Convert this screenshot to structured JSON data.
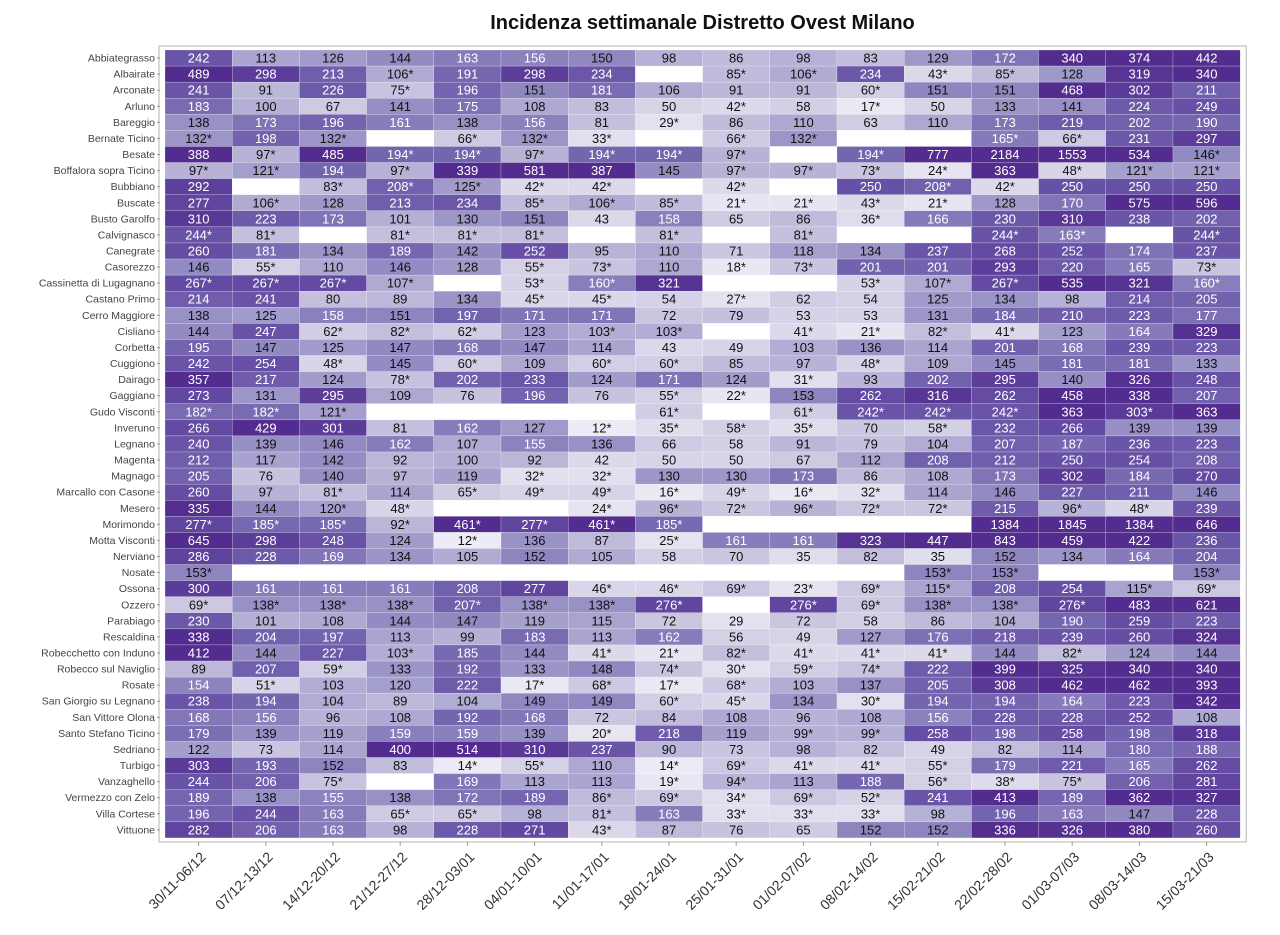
{
  "chart_data": {
    "type": "heatmap",
    "title": "Incidenza settimanale Distretto Ovest Milano",
    "xlabel": "",
    "ylabel": "",
    "columns": [
      "30/11-06/12",
      "07/12-13/12",
      "14/12-20/12",
      "21/12-27/12",
      "28/12-03/01",
      "04/01-10/01",
      "11/01-17/01",
      "18/01-24/01",
      "25/01-31/01",
      "01/02-07/02",
      "08/02-14/02",
      "15/02-21/02",
      "22/02-28/02",
      "01/03-07/03",
      "08/03-14/03",
      "15/03-21/03"
    ],
    "rows": [
      "Abbiategrasso",
      "Albairate",
      "Arconate",
      "Arluno",
      "Bareggio",
      "Bernate Ticino",
      "Besate",
      "Boffalora sopra Ticino",
      "Bubbiano",
      "Buscate",
      "Busto Garolfo",
      "Calvignasco",
      "Canegrate",
      "Casorezzo",
      "Cassinetta di Lugagnano",
      "Castano Primo",
      "Cerro Maggiore",
      "Cisliano",
      "Corbetta",
      "Cuggiono",
      "Dairago",
      "Gaggiano",
      "Gudo Visconti",
      "Inveruno",
      "Legnano",
      "Magenta",
      "Magnago",
      "Marcallo con Casone",
      "Mesero",
      "Morimondo",
      "Motta Visconti",
      "Nerviano",
      "Nosate",
      "Ossona",
      "Ozzero",
      "Parabiago",
      "Rescaldina",
      "Robecchetto con Induno",
      "Robecco sul Naviglio",
      "Rosate",
      "San Giorgio su Legnano",
      "San Vittore Olona",
      "Santo Stefano Ticino",
      "Sedriano",
      "Turbigo",
      "Vanzaghello",
      "Vermezzo con Zelo",
      "Villa Cortese",
      "Vittuone"
    ],
    "cells": [
      [
        "242",
        "113",
        "126",
        "144",
        "163",
        "156",
        "150",
        "98",
        "86",
        "98",
        "83",
        "129",
        "172",
        "340",
        "374",
        "442"
      ],
      [
        "489",
        "298",
        "213",
        "106*",
        "191",
        "298",
        "234",
        "",
        "85*",
        "106*",
        "234",
        "43*",
        "85*",
        "128",
        "319",
        "340"
      ],
      [
        "241",
        "91",
        "226",
        "75*",
        "196",
        "151",
        "181",
        "106",
        "91",
        "91",
        "60*",
        "151",
        "151",
        "468",
        "302",
        "211"
      ],
      [
        "183",
        "100",
        "67",
        "141",
        "175",
        "108",
        "83",
        "50",
        "42*",
        "58",
        "17*",
        "50",
        "133",
        "141",
        "224",
        "249"
      ],
      [
        "138",
        "173",
        "196",
        "161",
        "138",
        "156",
        "81",
        "29*",
        "86",
        "110",
        "63",
        "110",
        "173",
        "219",
        "202",
        "190"
      ],
      [
        "132*",
        "198",
        "132*",
        "",
        "66*",
        "132*",
        "33*",
        "",
        "66*",
        "132*",
        "",
        "",
        "165*",
        "66*",
        "231",
        "297"
      ],
      [
        "388",
        "97*",
        "485",
        "194*",
        "194*",
        "97*",
        "194*",
        "194*",
        "97*",
        "",
        "194*",
        "777",
        "2184",
        "1553",
        "534",
        "146*"
      ],
      [
        "97*",
        "121*",
        "194",
        "97*",
        "339",
        "581",
        "387",
        "145",
        "97*",
        "97*",
        "73*",
        "24*",
        "363",
        "48*",
        "121*",
        "121*"
      ],
      [
        "292",
        "",
        "83*",
        "208*",
        "125*",
        "42*",
        "42*",
        "",
        "42*",
        "",
        "250",
        "208*",
        "42*",
        "250",
        "250",
        "250"
      ],
      [
        "277",
        "106*",
        "128",
        "213",
        "234",
        "85*",
        "106*",
        "85*",
        "21*",
        "21*",
        "43*",
        "21*",
        "128",
        "170",
        "575",
        "596"
      ],
      [
        "310",
        "223",
        "173",
        "101",
        "130",
        "151",
        "43",
        "158",
        "65",
        "86",
        "36*",
        "166",
        "230",
        "310",
        "238",
        "202"
      ],
      [
        "244*",
        "81*",
        "",
        "81*",
        "81*",
        "81*",
        "",
        "81*",
        "",
        "81*",
        "",
        "",
        "244*",
        "163*",
        "",
        "244*"
      ],
      [
        "260",
        "181",
        "134",
        "189",
        "142",
        "252",
        "95",
        "110",
        "71",
        "118",
        "134",
        "237",
        "268",
        "252",
        "174",
        "237"
      ],
      [
        "146",
        "55*",
        "110",
        "146",
        "128",
        "55*",
        "73*",
        "110",
        "18*",
        "73*",
        "201",
        "201",
        "293",
        "220",
        "165",
        "73*"
      ],
      [
        "267*",
        "267*",
        "267*",
        "107*",
        "",
        "53*",
        "160*",
        "321",
        "",
        "",
        "53*",
        "107*",
        "267*",
        "535",
        "321",
        "160*"
      ],
      [
        "214",
        "241",
        "80",
        "89",
        "134",
        "45*",
        "45*",
        "54",
        "27*",
        "62",
        "54",
        "125",
        "134",
        "98",
        "214",
        "205"
      ],
      [
        "138",
        "125",
        "158",
        "151",
        "197",
        "171",
        "171",
        "72",
        "79",
        "53",
        "53",
        "131",
        "184",
        "210",
        "223",
        "177"
      ],
      [
        "144",
        "247",
        "62*",
        "82*",
        "62*",
        "123",
        "103*",
        "103*",
        "",
        "41*",
        "21*",
        "82*",
        "41*",
        "123",
        "164",
        "329"
      ],
      [
        "195",
        "147",
        "125",
        "147",
        "168",
        "147",
        "114",
        "43",
        "49",
        "103",
        "136",
        "114",
        "201",
        "168",
        "239",
        "223"
      ],
      [
        "242",
        "254",
        "48*",
        "145",
        "60*",
        "109",
        "60*",
        "60*",
        "85",
        "97",
        "48*",
        "109",
        "145",
        "181",
        "181",
        "133"
      ],
      [
        "357",
        "217",
        "124",
        "78*",
        "202",
        "233",
        "124",
        "171",
        "124",
        "31*",
        "93",
        "202",
        "295",
        "140",
        "326",
        "248"
      ],
      [
        "273",
        "131",
        "295",
        "109",
        "76",
        "196",
        "76",
        "55*",
        "22*",
        "153",
        "262",
        "316",
        "262",
        "458",
        "338",
        "207"
      ],
      [
        "182*",
        "182*",
        "121*",
        "",
        "",
        "",
        "",
        "61*",
        "",
        "61*",
        "242*",
        "242*",
        "242*",
        "363",
        "303*",
        "363"
      ],
      [
        "266",
        "429",
        "301",
        "81",
        "162",
        "127",
        "12*",
        "35*",
        "58*",
        "35*",
        "70",
        "58*",
        "232",
        "266",
        "139",
        "139"
      ],
      [
        "240",
        "139",
        "146",
        "162",
        "107",
        "155",
        "136",
        "66",
        "58",
        "91",
        "79",
        "104",
        "207",
        "187",
        "236",
        "223"
      ],
      [
        "212",
        "117",
        "142",
        "92",
        "100",
        "92",
        "42",
        "50",
        "50",
        "67",
        "112",
        "208",
        "212",
        "250",
        "254",
        "208"
      ],
      [
        "205",
        "76",
        "140",
        "97",
        "119",
        "32*",
        "32*",
        "130",
        "130",
        "173",
        "86",
        "108",
        "173",
        "302",
        "184",
        "270"
      ],
      [
        "260",
        "97",
        "81*",
        "114",
        "65*",
        "49*",
        "49*",
        "16*",
        "49*",
        "16*",
        "32*",
        "114",
        "146",
        "227",
        "211",
        "146"
      ],
      [
        "335",
        "144",
        "120*",
        "48*",
        "",
        "",
        "24*",
        "96*",
        "72*",
        "96*",
        "72*",
        "72*",
        "215",
        "96*",
        "48*",
        "239"
      ],
      [
        "277*",
        "185*",
        "185*",
        "92*",
        "461*",
        "277*",
        "461*",
        "185*",
        "",
        "",
        "",
        "",
        "1384",
        "1845",
        "1384",
        "646"
      ],
      [
        "645",
        "298",
        "248",
        "124",
        "12*",
        "136",
        "87",
        "25*",
        "161",
        "161",
        "323",
        "447",
        "843",
        "459",
        "422",
        "236"
      ],
      [
        "286",
        "228",
        "169",
        "134",
        "105",
        "152",
        "105",
        "58",
        "70",
        "35",
        "82",
        "35",
        "152",
        "134",
        "164",
        "204"
      ],
      [
        "153*",
        "",
        "",
        "",
        "",
        "",
        "",
        "",
        "",
        "",
        "",
        "153*",
        "153*",
        "",
        "",
        "153*"
      ],
      [
        "300",
        "161",
        "161",
        "161",
        "208",
        "277",
        "46*",
        "46*",
        "69*",
        "23*",
        "69*",
        "115*",
        "208",
        "254",
        "115*",
        "69*"
      ],
      [
        "69*",
        "138*",
        "138*",
        "138*",
        "207*",
        "138*",
        "138*",
        "276*",
        "",
        "276*",
        "69*",
        "138*",
        "138*",
        "276*",
        "483",
        "621"
      ],
      [
        "230",
        "101",
        "108",
        "144",
        "147",
        "119",
        "115",
        "72",
        "29",
        "72",
        "58",
        "86",
        "104",
        "190",
        "259",
        "223"
      ],
      [
        "338",
        "204",
        "197",
        "113",
        "99",
        "183",
        "113",
        "162",
        "56",
        "49",
        "127",
        "176",
        "218",
        "239",
        "260",
        "324"
      ],
      [
        "412",
        "144",
        "227",
        "103*",
        "185",
        "144",
        "41*",
        "21*",
        "82*",
        "41*",
        "41*",
        "41*",
        "144",
        "82*",
        "124",
        "144"
      ],
      [
        "89",
        "207",
        "59*",
        "133",
        "192",
        "133",
        "148",
        "74*",
        "30*",
        "59*",
        "74*",
        "222",
        "399",
        "325",
        "340",
        "340"
      ],
      [
        "154",
        "51*",
        "103",
        "120",
        "222",
        "17*",
        "68*",
        "17*",
        "68*",
        "103",
        "137",
        "205",
        "308",
        "462",
        "462",
        "393"
      ],
      [
        "238",
        "194",
        "104",
        "89",
        "104",
        "149",
        "149",
        "60*",
        "45*",
        "134",
        "30*",
        "194",
        "194",
        "164",
        "223",
        "342"
      ],
      [
        "168",
        "156",
        "96",
        "108",
        "192",
        "168",
        "72",
        "84",
        "108",
        "96",
        "108",
        "156",
        "228",
        "228",
        "252",
        "108"
      ],
      [
        "179",
        "139",
        "119",
        "159",
        "159",
        "139",
        "20*",
        "218",
        "119",
        "99*",
        "99*",
        "258",
        "198",
        "258",
        "198",
        "318"
      ],
      [
        "122",
        "73",
        "114",
        "400",
        "514",
        "310",
        "237",
        "90",
        "73",
        "98",
        "82",
        "49",
        "82",
        "114",
        "180",
        "188"
      ],
      [
        "303",
        "193",
        "152",
        "83",
        "14*",
        "55*",
        "110",
        "14*",
        "69*",
        "41*",
        "41*",
        "55*",
        "179",
        "221",
        "165",
        "262"
      ],
      [
        "244",
        "206",
        "75*",
        "",
        "169",
        "113",
        "113",
        "19*",
        "94*",
        "113",
        "188",
        "56*",
        "38*",
        "75*",
        "206",
        "281"
      ],
      [
        "189",
        "138",
        "155",
        "138",
        "172",
        "189",
        "86*",
        "69*",
        "34*",
        "69*",
        "52*",
        "241",
        "413",
        "189",
        "362",
        "327"
      ],
      [
        "196",
        "244",
        "163",
        "65*",
        "65*",
        "98",
        "81*",
        "163",
        "33*",
        "33*",
        "33*",
        "98",
        "196",
        "163",
        "147",
        "228"
      ],
      [
        "282",
        "206",
        "163",
        "98",
        "228",
        "271",
        "43*",
        "87",
        "76",
        "65",
        "152",
        "152",
        "336",
        "326",
        "380",
        "260"
      ]
    ]
  }
}
